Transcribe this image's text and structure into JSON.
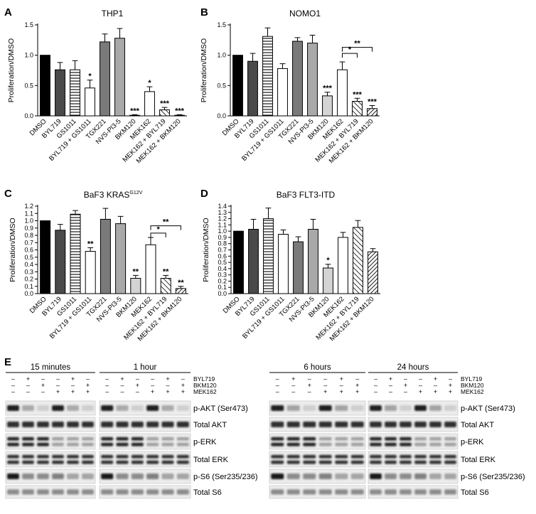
{
  "chart_data": [
    {
      "id": "A",
      "panel_label": "A",
      "type": "bar",
      "title": "THP1",
      "title_superscript": "",
      "ylabel": "Proliferation/DMSO",
      "ylim": [
        0,
        1.5
      ],
      "yticks": [
        "0.0",
        "0.5",
        "1.0",
        "1.5"
      ],
      "categories": [
        "DMSO",
        "BYL719",
        "GS1011",
        "BYL719 + GS1011",
        "TGX221",
        "NVS-PI3-5",
        "BKM120",
        "MEK162",
        "MEK162 + BYL719",
        "MEK162 + BKM120"
      ],
      "values": [
        1.0,
        0.76,
        0.76,
        0.46,
        1.22,
        1.28,
        0.01,
        0.4,
        0.1,
        0.01
      ],
      "errors": [
        0,
        0.12,
        0.15,
        0.13,
        0.13,
        0.16,
        0.01,
        0.08,
        0.04,
        0.01
      ],
      "significance": [
        "",
        "",
        "",
        "*",
        "",
        "",
        "***",
        "*",
        "***",
        "***"
      ],
      "brackets": []
    },
    {
      "id": "B",
      "panel_label": "B",
      "type": "bar",
      "title": "NOMO1",
      "title_superscript": "",
      "ylabel": "Proliferation/DMSO",
      "ylim": [
        0,
        1.5
      ],
      "yticks": [
        "0.0",
        "0.5",
        "1.0",
        "1.5"
      ],
      "categories": [
        "DMSO",
        "BYL719",
        "GS1011",
        "BYL719 + GS1011",
        "TGX221",
        "NVS-PI3-5",
        "BKM120",
        "MEK162",
        "MEK162 + BYL719",
        "MEK162 + BKM120"
      ],
      "values": [
        1.0,
        0.9,
        1.31,
        0.78,
        1.23,
        1.2,
        0.33,
        0.76,
        0.24,
        0.12
      ],
      "errors": [
        0,
        0.13,
        0.14,
        0.08,
        0.06,
        0.13,
        0.06,
        0.13,
        0.05,
        0.05
      ],
      "significance": [
        "",
        "",
        "",
        "",
        "",
        "",
        "***",
        "",
        "***",
        "***"
      ],
      "brackets": [
        {
          "from": 7,
          "to": 8,
          "label": "*",
          "y": 1.03
        },
        {
          "from": 7,
          "to": 9,
          "label": "**",
          "y": 1.13
        }
      ]
    },
    {
      "id": "C",
      "panel_label": "C",
      "type": "bar",
      "title": "BaF3 KRAS",
      "title_superscript": "G12V",
      "ylabel": "Proliferation/DMSO",
      "ylim": [
        0,
        1.2
      ],
      "yticks": [
        "0.0",
        "0.1",
        "0.2",
        "0.3",
        "0.4",
        "0.5",
        "0.6",
        "0.7",
        "0.8",
        "0.9",
        "1.0",
        "1.1",
        "1.2"
      ],
      "categories": [
        "DMSO",
        "BYL719",
        "GS1011",
        "BYL719 + GS1011",
        "TGX221",
        "NVS-PI3-5",
        "BKM120",
        "MEK162",
        "MEK162 + BYL719",
        "MEK162 + BKM120"
      ],
      "values": [
        1.0,
        0.87,
        1.09,
        0.58,
        1.02,
        0.96,
        0.21,
        0.67,
        0.21,
        0.07
      ],
      "errors": [
        0,
        0.08,
        0.05,
        0.05,
        0.15,
        0.1,
        0.04,
        0.1,
        0.04,
        0.03
      ],
      "significance": [
        "",
        "",
        "",
        "**",
        "",
        "",
        "**",
        "",
        "**",
        "**"
      ],
      "brackets": [
        {
          "from": 7,
          "to": 8,
          "label": "*",
          "y": 0.83
        },
        {
          "from": 7,
          "to": 9,
          "label": "**",
          "y": 0.93
        }
      ]
    },
    {
      "id": "D",
      "panel_label": "D",
      "type": "bar",
      "title": "BaF3 FLT3-ITD",
      "title_superscript": "",
      "ylabel": "Proliferation/DMSO",
      "ylim": [
        0,
        1.4
      ],
      "yticks": [
        "0.0",
        "0.1",
        "0.2",
        "0.3",
        "0.4",
        "0.5",
        "0.6",
        "0.7",
        "0.8",
        "0.9",
        "1.0",
        "1.1",
        "1.2",
        "1.3",
        "1.4"
      ],
      "categories": [
        "DMSO",
        "BYL719",
        "GS1011",
        "BYL719 + GS1011",
        "TGX221",
        "NVS-PI3-5",
        "BKM120",
        "MEK162",
        "MEK162 + BYL719",
        "MEK162 + BKM120"
      ],
      "values": [
        1.0,
        1.03,
        1.2,
        0.95,
        0.83,
        1.03,
        0.41,
        0.9,
        1.06,
        0.67
      ],
      "errors": [
        0,
        0.16,
        0.17,
        0.07,
        0.08,
        0.16,
        0.06,
        0.08,
        0.11,
        0.05
      ],
      "significance": [
        "",
        "",
        "",
        "",
        "",
        "",
        "*",
        "",
        "",
        ""
      ],
      "brackets": []
    }
  ],
  "blots": {
    "panel_label": "E",
    "treatments": [
      "BYL719",
      "BKM120",
      "MEK162"
    ],
    "protein_labels": [
      "p-AKT (Ser473)",
      "Total AKT",
      "p-ERK",
      "Total ERK",
      "p-S6 (Ser235/236)",
      "Total S6"
    ],
    "groups": [
      {
        "title": "15 minutes",
        "signs": [
          [
            "–",
            "+",
            "–",
            "–",
            "+",
            "–"
          ],
          [
            "–",
            "–",
            "+",
            "–",
            "–",
            "+"
          ],
          [
            "–",
            "–",
            "–",
            "+",
            "+",
            "+"
          ]
        ]
      },
      {
        "title": "1 hour",
        "signs": [
          [
            "–",
            "+",
            "–",
            "–",
            "+",
            "–"
          ],
          [
            "–",
            "–",
            "+",
            "–",
            "–",
            "+"
          ],
          [
            "–",
            "–",
            "–",
            "+",
            "+",
            "+"
          ]
        ]
      },
      {
        "title": "6 hours",
        "signs": [
          [
            "–",
            "+",
            "–",
            "–",
            "+",
            "–"
          ],
          [
            "–",
            "–",
            "+",
            "–",
            "–",
            "+"
          ],
          [
            "–",
            "–",
            "–",
            "+",
            "+",
            "+"
          ]
        ]
      },
      {
        "title": "24 hours",
        "signs": [
          [
            "–",
            "+",
            "–",
            "–",
            "+",
            "–"
          ],
          [
            "–",
            "–",
            "+",
            "–",
            "–",
            "+"
          ],
          [
            "–",
            "–",
            "–",
            "+",
            "+",
            "+"
          ]
        ]
      }
    ]
  }
}
